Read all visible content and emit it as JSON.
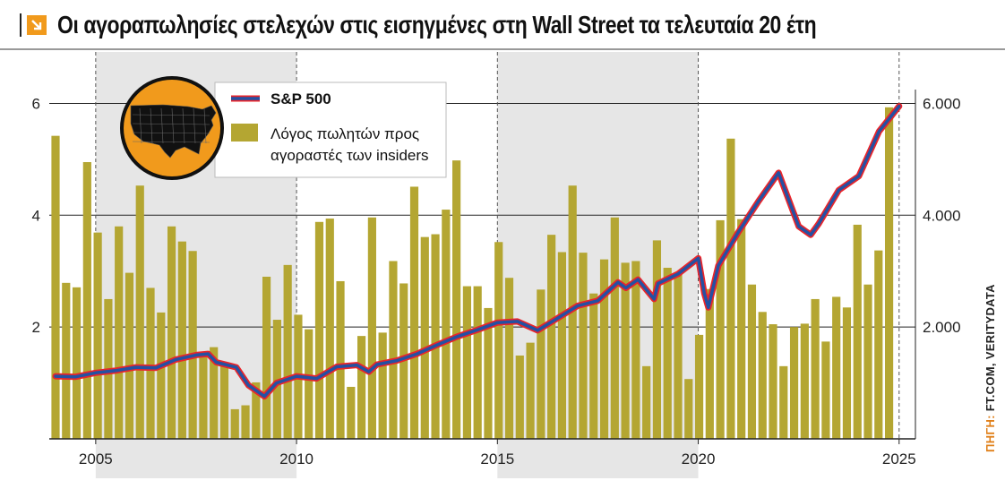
{
  "title": "Οι αγοραπωλησίες στελεχών στις εισηγμένες στη Wall Street τα τελευταία 20 έτη",
  "source_label": "ΠΗΓΗ:",
  "source_text": "FT.COM, VERITYDATA",
  "colors": {
    "bars": "#b4a632",
    "line_outer": "#e8252b",
    "line_inner": "#2451a3",
    "shade": "#e6e6e6",
    "accent": "#f19a1c"
  },
  "icon": "usa-map-icon",
  "chart_data": {
    "type": "bar",
    "title": "Οι αγοραπωλησίες στελεχών στις εισηγμένες στη Wall Street τα τελευταία 20 έτη",
    "xlabel": "",
    "ylabel_left": "",
    "ylabel_right": "",
    "xlim": [
      2004,
      2025.25
    ],
    "ylim_left": [
      0,
      6.6
    ],
    "ylim_right": [
      0,
      6600
    ],
    "x_ticks": [
      "2005",
      "2010",
      "2015",
      "2020",
      "2025"
    ],
    "y_ticks_left": [
      "2",
      "4",
      "6"
    ],
    "y_ticks_right": [
      "2.000",
      "4.000",
      "6.000"
    ],
    "shaded_periods": [
      [
        2005,
        2010
      ],
      [
        2015,
        2020
      ]
    ],
    "legend": {
      "placement": "top-left",
      "line_label": "S&P 500",
      "bar_label_1": "Λόγος πωλητών προς",
      "bar_label_2": "αγοραστές των insiders"
    },
    "series": [
      {
        "name": "Λόγος πωλητών προς αγοραστές των insiders",
        "type": "bar",
        "values": [
          5.42,
          2.79,
          2.71,
          4.95,
          3.69,
          2.5,
          3.8,
          2.97,
          4.53,
          2.7,
          2.26,
          3.8,
          3.53,
          3.36,
          1.52,
          1.64,
          1.36,
          0.53,
          0.6,
          1.01,
          2.9,
          2.13,
          3.11,
          2.22,
          1.96,
          3.88,
          3.94,
          2.82,
          0.93,
          1.84,
          3.96,
          1.9,
          3.18,
          2.78,
          4.51,
          3.61,
          3.66,
          4.1,
          4.98,
          2.73,
          2.73,
          2.34,
          3.52,
          2.88,
          1.49,
          1.72,
          2.67,
          3.65,
          3.34,
          4.53,
          3.33,
          2.6,
          3.21,
          3.96,
          3.15,
          3.18,
          1.3,
          3.55,
          3.06,
          2.96,
          1.07,
          1.86,
          2.68,
          3.91,
          5.37,
          3.93,
          2.76,
          2.27,
          2.05,
          1.3,
          2.0,
          2.06,
          2.5,
          1.74,
          2.54,
          2.35,
          3.83,
          2.76,
          3.37,
          5.93
        ]
      },
      {
        "name": "S&P 500",
        "type": "line",
        "x": [
          2004.0,
          2004.5,
          2005.0,
          2005.5,
          2006.0,
          2006.5,
          2007.0,
          2007.5,
          2007.8,
          2008.0,
          2008.5,
          2008.8,
          2009.2,
          2009.5,
          2010.0,
          2010.5,
          2011.0,
          2011.5,
          2011.8,
          2012.0,
          2012.5,
          2013.0,
          2013.5,
          2014.0,
          2014.5,
          2015.0,
          2015.5,
          2016.0,
          2016.5,
          2017.0,
          2017.5,
          2018.0,
          2018.2,
          2018.5,
          2018.9,
          2019.0,
          2019.5,
          2020.0,
          2020.15,
          2020.25,
          2020.5,
          2021.0,
          2021.5,
          2022.0,
          2022.5,
          2022.8,
          2023.0,
          2023.5,
          2024.0,
          2024.5,
          2025.0
        ],
        "y": [
          1120,
          1110,
          1180,
          1220,
          1280,
          1270,
          1420,
          1500,
          1520,
          1370,
          1280,
          960,
          760,
          1000,
          1120,
          1080,
          1290,
          1320,
          1200,
          1330,
          1400,
          1520,
          1680,
          1830,
          1950,
          2080,
          2100,
          1940,
          2160,
          2380,
          2470,
          2800,
          2700,
          2850,
          2500,
          2780,
          2950,
          3230,
          2600,
          2350,
          3100,
          3700,
          4250,
          4760,
          3800,
          3650,
          3850,
          4450,
          4700,
          5500,
          5950
        ]
      }
    ]
  }
}
